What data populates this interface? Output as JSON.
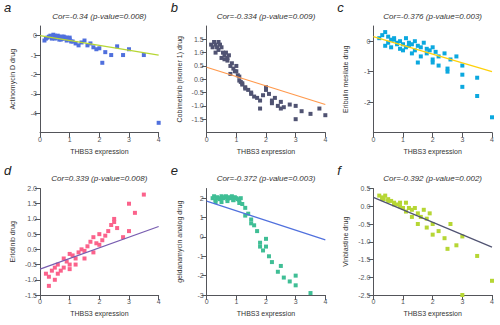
{
  "chart_data": [
    {
      "type": "scatter",
      "annotations": [
        "a"
      ],
      "title": "Cor=-0.34 (p-value=0.008)",
      "xlabel": "THBS3 expression",
      "ylabel": "Actinomycin D drug",
      "xlim": [
        0,
        4
      ],
      "xticks": [
        0,
        1,
        2,
        3,
        4
      ],
      "ylim": [
        -5,
        0.5
      ],
      "yticks": [
        0,
        -1,
        -2,
        -3,
        -4
      ],
      "grid": false,
      "series": [
        {
          "type": "scatter",
          "marker": "square",
          "x": [
            0.15,
            0.2,
            0.25,
            0.3,
            0.35,
            0.4,
            0.45,
            0.5,
            0.5,
            0.5,
            0.55,
            0.6,
            0.6,
            0.65,
            0.65,
            0.7,
            0.7,
            0.75,
            0.75,
            0.8,
            0.8,
            0.85,
            0.9,
            0.9,
            0.95,
            1.0,
            1.0,
            1.05,
            1.1,
            1.2,
            1.3,
            1.4,
            1.5,
            1.6,
            1.7,
            1.8,
            1.9,
            2.0,
            2.1,
            2.2,
            2.4,
            2.6,
            2.8,
            3.0,
            3.5,
            4.0
          ],
          "values": [
            -0.25,
            -0.15,
            -0.1,
            -0.05,
            0.0,
            -0.15,
            0.05,
            0.0,
            -0.1,
            -0.15,
            -0.05,
            -0.1,
            0.0,
            -0.05,
            -0.2,
            -0.1,
            -0.2,
            -0.05,
            -0.15,
            -0.15,
            -0.05,
            -0.1,
            -0.1,
            -0.25,
            -0.15,
            -0.1,
            -0.2,
            -0.3,
            -0.3,
            -0.4,
            -0.5,
            -0.35,
            -0.25,
            -0.5,
            -0.4,
            -0.6,
            -0.7,
            -0.65,
            -1.4,
            -0.85,
            -1.0,
            -0.55,
            -1.0,
            -0.7,
            -1.0,
            -4.5
          ]
        },
        {
          "type": "line",
          "line_style": "solid",
          "x": [
            0.0,
            4.0
          ],
          "values": [
            0.0,
            -1.0
          ]
        }
      ]
    },
    {
      "type": "scatter",
      "annotations": [
        "b"
      ],
      "title": "Cor=-0.334 (p-value=0.009)",
      "xlabel": "THBS3 expression",
      "ylabel": "Cobimetinib (isomer 1) drug",
      "xlim": [
        0,
        4
      ],
      "xticks": [
        0,
        1,
        2,
        3,
        4
      ],
      "ylim": [
        -2,
        2
      ],
      "yticks": [
        1.5,
        {
          "value": 1,
          "label": "1.0"
        },
        0.5,
        {
          "value": 0,
          "label": "0.0"
        },
        -0.5,
        {
          "value": -1,
          "label": "-1.0"
        },
        -1.5
      ],
      "grid": false,
      "series": [
        {
          "type": "scatter",
          "marker": "square",
          "x": [
            0.15,
            0.2,
            0.25,
            0.3,
            0.35,
            0.4,
            0.45,
            0.5,
            0.55,
            0.6,
            0.65,
            0.7,
            0.75,
            0.8,
            0.85,
            0.9,
            0.95,
            1.0,
            1.05,
            1.1,
            1.15,
            1.2,
            1.3,
            1.4,
            1.5,
            1.6,
            1.7,
            1.8,
            1.9,
            2.0,
            2.1,
            2.2,
            2.3,
            2.4,
            2.5,
            2.6,
            2.8,
            3.0,
            3.2,
            3.5,
            3.8,
            4.0,
            0.3,
            0.4,
            0.5,
            0.6,
            0.7,
            0.8,
            1.0,
            1.1,
            1.2,
            1.3,
            1.5,
            1.8,
            2.0,
            2.2,
            2.5,
            3.0
          ],
          "values": [
            1.3,
            1.2,
            1.4,
            1.3,
            1.2,
            1.4,
            1.3,
            1.2,
            1.0,
            0.9,
            1.0,
            0.8,
            0.9,
            0.5,
            0.6,
            0.4,
            0.3,
            0.5,
            0.15,
            -0.05,
            -0.1,
            -0.2,
            -0.3,
            -0.4,
            -0.55,
            -0.65,
            -0.7,
            -0.8,
            -0.6,
            -0.4,
            -0.55,
            -0.9,
            -0.7,
            -1.0,
            -0.85,
            -1.05,
            -0.95,
            -1.0,
            -1.2,
            -1.3,
            -1.1,
            -1.35,
            1.0,
            1.1,
            0.8,
            0.75,
            0.7,
            0.2,
            0.3,
            0.1,
            -0.15,
            -0.35,
            -0.5,
            -1.1,
            -0.3,
            -0.8,
            -1.1,
            -1.5
          ]
        },
        {
          "type": "line",
          "line_style": "solid",
          "x": [
            0.0,
            4.0
          ],
          "values": [
            0.45,
            -0.95
          ]
        }
      ]
    },
    {
      "type": "scatter",
      "annotations": [
        "c"
      ],
      "title": "Cor=-0.376 (p-value=0.003)",
      "xlabel": "THBS3 expression",
      "ylabel": "Eribulin mesilate drug",
      "xlim": [
        0,
        4
      ],
      "xticks": [
        0,
        1,
        2,
        3,
        4
      ],
      "ylim": [
        -3,
        0.5
      ],
      "yticks": [
        0,
        -1,
        -2
      ],
      "grid": false,
      "series": [
        {
          "type": "scatter",
          "marker": "square",
          "x": [
            0.2,
            0.3,
            0.4,
            0.5,
            0.6,
            0.7,
            0.8,
            0.9,
            1.0,
            1.1,
            1.2,
            1.3,
            1.4,
            1.5,
            1.6,
            1.7,
            1.8,
            1.9,
            2.0,
            2.1,
            2.2,
            2.4,
            2.6,
            2.8,
            3.0,
            3.5,
            4.0,
            0.4,
            0.6,
            0.8,
            1.0,
            1.2,
            1.4,
            1.6,
            1.8,
            2.0,
            2.2,
            2.5,
            3.0,
            3.5,
            0.5,
            0.7,
            0.9,
            1.1,
            1.3,
            1.5,
            2.0,
            2.5,
            3.0
          ],
          "values": [
            0.1,
            0.2,
            0.3,
            0.15,
            0.05,
            0.1,
            -0.05,
            0.0,
            -0.1,
            0.1,
            -0.05,
            -0.1,
            0.0,
            -0.15,
            -0.2,
            -0.05,
            -0.25,
            -0.3,
            -0.2,
            -0.35,
            -0.5,
            -0.4,
            -0.6,
            -0.5,
            -0.8,
            -1.2,
            -2.5,
            -0.15,
            -0.2,
            -0.1,
            -0.3,
            -0.15,
            -0.3,
            -0.5,
            -0.4,
            -0.6,
            -0.8,
            -0.9,
            -1.1,
            -1.8,
            -0.05,
            0.05,
            -0.25,
            -0.2,
            -0.4,
            -0.7,
            -0.7,
            -1.0,
            -1.5
          ]
        },
        {
          "type": "line",
          "line_style": "solid",
          "x": [
            0.0,
            4.0
          ],
          "values": [
            0.15,
            -1.0
          ]
        }
      ]
    },
    {
      "type": "scatter",
      "annotations": [
        "d"
      ],
      "title": "Cor=0.339 (p-value=0.008)",
      "xlabel": "THBS3 expression",
      "ylabel": "Erlotinib drug",
      "xlim": [
        0,
        4
      ],
      "xticks": [
        0,
        1,
        2,
        3,
        4
      ],
      "ylim": [
        -1.5,
        2
      ],
      "yticks": [
        {
          "value": 2,
          "label": "2.0"
        },
        1.5,
        {
          "value": 1,
          "label": "1.0"
        },
        0.5,
        {
          "value": 0,
          "label": "0.0"
        },
        -0.5,
        {
          "value": -1,
          "label": "-1.0"
        },
        -1.5
      ],
      "grid": false,
      "series": [
        {
          "type": "scatter",
          "marker": "square",
          "x": [
            0.2,
            0.3,
            0.4,
            0.5,
            0.5,
            0.6,
            0.7,
            0.8,
            0.9,
            1.0,
            1.0,
            1.1,
            1.2,
            1.3,
            1.4,
            1.5,
            1.6,
            1.7,
            1.8,
            1.9,
            2.0,
            2.1,
            2.2,
            2.3,
            2.4,
            2.5,
            2.6,
            2.8,
            3.0,
            3.2,
            3.5,
            0.3,
            0.6,
            0.8,
            1.0,
            1.2,
            1.5,
            1.8,
            2.0,
            2.5,
            3.0
          ],
          "values": [
            -0.8,
            -0.9,
            -0.7,
            -1.0,
            -0.6,
            -0.5,
            -0.7,
            -0.3,
            -0.4,
            -0.5,
            -0.15,
            -0.2,
            -0.3,
            -0.1,
            0.0,
            -0.05,
            0.1,
            0.25,
            0.4,
            0.2,
            0.5,
            0.3,
            0.45,
            0.6,
            0.8,
            1.0,
            0.7,
            0.4,
            0.6,
            1.2,
            1.8,
            -1.2,
            -0.8,
            -0.6,
            -0.65,
            -0.5,
            -0.3,
            -0.1,
            0.15,
            0.9,
            1.5
          ]
        },
        {
          "type": "line",
          "line_style": "solid",
          "x": [
            0.0,
            4.0
          ],
          "values": [
            -0.65,
            0.75
          ]
        }
      ]
    },
    {
      "type": "scatter",
      "annotations": [
        "e"
      ],
      "title": "Cor=-0.372 (p-value=0.003)",
      "xlabel": "THBS3 expression",
      "ylabel": "geldanamycin analog drug",
      "xlim": [
        0,
        4
      ],
      "xticks": [
        0,
        1,
        2,
        3,
        4
      ],
      "ylim": [
        -3,
        2.5
      ],
      "yticks": [
        2,
        1,
        0,
        -1,
        -2,
        -3
      ],
      "grid": false,
      "series": [
        {
          "type": "scatter",
          "marker": "square",
          "x": [
            0.2,
            0.25,
            0.3,
            0.35,
            0.4,
            0.45,
            0.5,
            0.55,
            0.6,
            0.65,
            0.7,
            0.75,
            0.8,
            0.85,
            0.9,
            0.95,
            1.0,
            1.05,
            1.1,
            1.15,
            1.2,
            1.3,
            1.4,
            1.5,
            1.6,
            1.7,
            1.8,
            1.9,
            2.0,
            2.1,
            2.2,
            2.4,
            2.6,
            2.8,
            3.0,
            3.5,
            0.3,
            0.5,
            0.7,
            0.9,
            1.1,
            1.3,
            1.5,
            1.8,
            2.0,
            2.5,
            3.0
          ],
          "values": [
            2.0,
            2.1,
            1.9,
            2.05,
            2.0,
            1.95,
            2.1,
            2.0,
            2.05,
            2.1,
            1.95,
            2.05,
            2.0,
            2.1,
            1.9,
            2.05,
            2.0,
            1.95,
            1.9,
            2.0,
            1.7,
            1.5,
            1.2,
            0.9,
            0.6,
            0.3,
            -0.3,
            -0.7,
            -0.1,
            -1.0,
            -1.3,
            -1.8,
            -2.1,
            -2.3,
            -2.5,
            -2.9,
            1.8,
            1.8,
            1.85,
            1.9,
            1.75,
            1.1,
            0.7,
            -0.5,
            -0.5,
            -1.5,
            -2.0
          ]
        },
        {
          "type": "line",
          "line_style": "solid",
          "x": [
            0.0,
            4.0
          ],
          "values": [
            1.85,
            -0.15
          ]
        }
      ]
    },
    {
      "type": "scatter",
      "annotations": [
        "f"
      ],
      "title": "Cor=-0.392 (p-value=0.002)",
      "xlabel": "THBS3 expression",
      "ylabel": "Vinblastine drug",
      "xlim": [
        0,
        4
      ],
      "xticks": [
        0,
        1,
        2,
        3,
        4
      ],
      "ylim": [
        -2.5,
        0.5
      ],
      "yticks": [
        0.5,
        {
          "value": 0,
          "label": "0.0"
        },
        -0.5,
        {
          "value": -1,
          "label": "-1.0"
        },
        -1.5,
        {
          "value": -2,
          "label": "-2.0"
        },
        -2.5
      ],
      "grid": false,
      "series": [
        {
          "type": "scatter",
          "marker": "square",
          "x": [
            0.2,
            0.3,
            0.35,
            0.4,
            0.5,
            0.6,
            0.7,
            0.8,
            0.9,
            1.0,
            1.1,
            1.2,
            1.3,
            1.4,
            1.5,
            1.6,
            1.7,
            1.8,
            1.9,
            2.0,
            2.2,
            2.4,
            2.6,
            2.8,
            3.0,
            3.5,
            4.0,
            0.3,
            0.5,
            0.7,
            0.9,
            1.1,
            1.3,
            1.5,
            1.8,
            2.0,
            2.5,
            3.0
          ],
          "values": [
            0.3,
            0.25,
            0.2,
            0.3,
            0.2,
            0.15,
            0.1,
            0.05,
            0.1,
            -0.05,
            0.1,
            -0.05,
            -0.1,
            -0.05,
            -0.2,
            -0.3,
            -0.1,
            -0.35,
            -0.2,
            -0.5,
            -0.7,
            -0.9,
            -0.5,
            -1.1,
            -0.85,
            -1.4,
            -2.1,
            0.2,
            0.15,
            0.05,
            0.0,
            -0.15,
            -0.3,
            -0.5,
            -0.6,
            -0.8,
            -1.2,
            -2.5
          ]
        },
        {
          "type": "line",
          "line_style": "solid",
          "x": [
            0.0,
            4.0
          ],
          "values": [
            0.25,
            -1.15
          ]
        }
      ]
    }
  ]
}
